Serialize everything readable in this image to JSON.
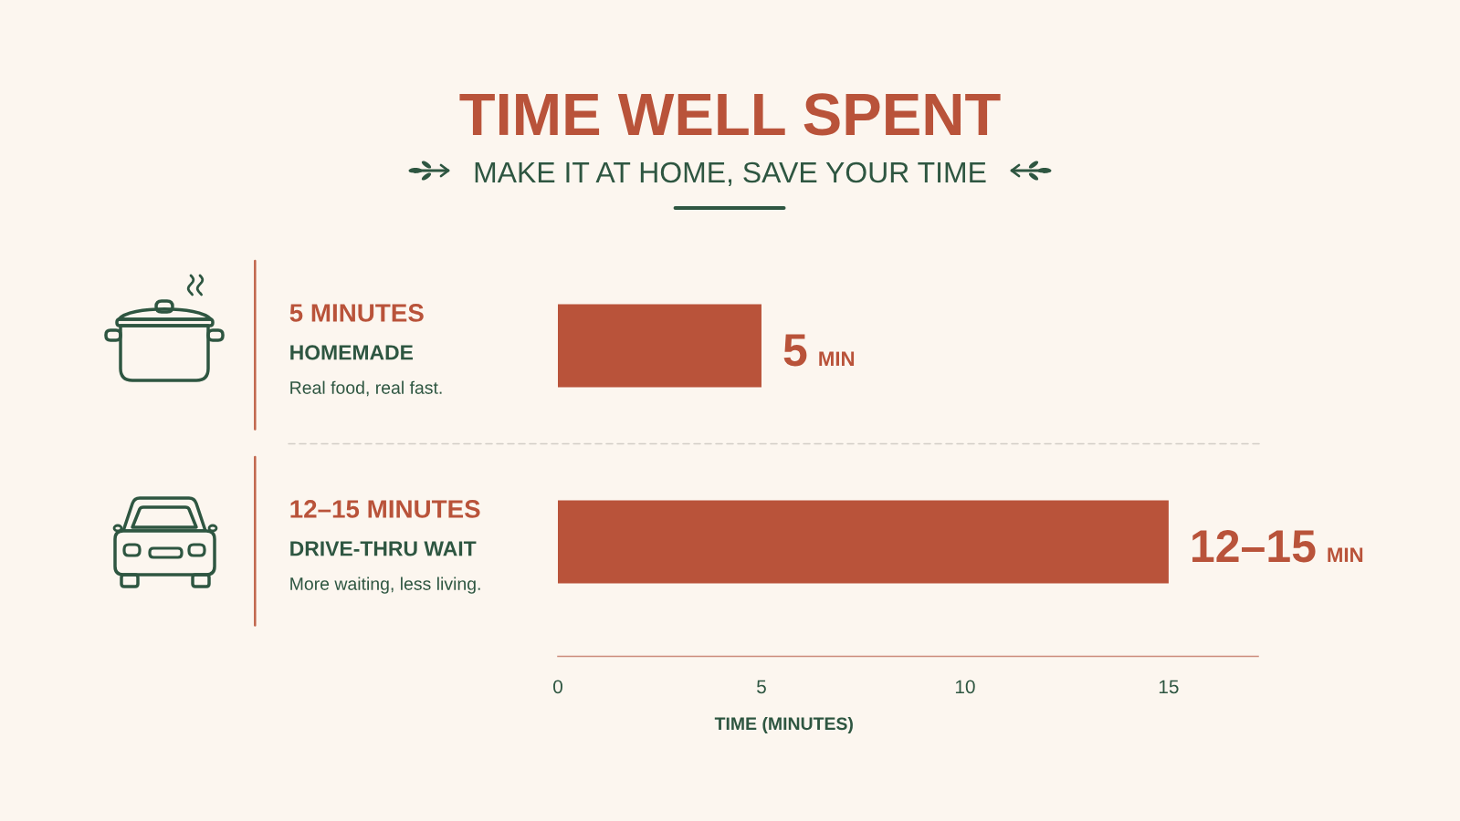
{
  "chart_data": {
    "type": "bar",
    "orientation": "horizontal",
    "title": "TIME WELL SPENT",
    "subtitle": "MAKE IT AT HOME, SAVE YOUR TIME",
    "xlabel": "TIME (MINUTES)",
    "categories": [
      "HOMEMADE",
      "DRIVE-THRU WAIT"
    ],
    "values": [
      5,
      15
    ],
    "color": "#b9533a",
    "value_labels": [
      "5 MIN",
      "12–15 MIN"
    ],
    "annotations": [
      "5 MINUTES",
      "Real food, real fast.",
      "12–15 MINUTES",
      "More waiting, less living."
    ],
    "xlim": [
      0,
      17.2
    ],
    "xticks": [
      0,
      5,
      10,
      15
    ],
    "grid": false
  }
}
